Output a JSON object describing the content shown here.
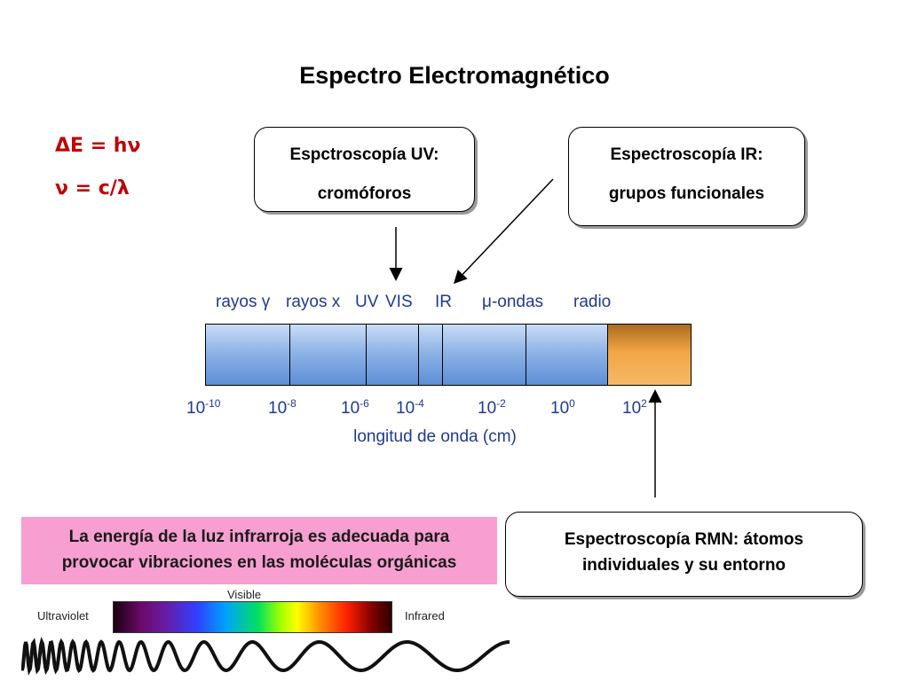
{
  "title": "Espectro Electromagnético",
  "formulas": [
    "ΔE = hν",
    "ν = c/λ"
  ],
  "uv_box": {
    "line1": "Espctroscopía UV:",
    "line2": "cromóforos"
  },
  "ir_box": {
    "line1": "Espectroscopía IR:",
    "line2": "grupos funcionales"
  },
  "rmn_box": {
    "line1": "Espectroscopía RMN: átomos",
    "line2": "individuales y su entorno"
  },
  "regions": [
    "rayos γ",
    "rayos x",
    "UV",
    "VIS",
    "IR",
    "μ-ondas",
    "radio"
  ],
  "ticks": [
    {
      "base": "10",
      "exp": "-10"
    },
    {
      "base": "10",
      "exp": "-8"
    },
    {
      "base": "10",
      "exp": "-6"
    },
    {
      "base": "10",
      "exp": "-4"
    },
    {
      "base": "10",
      "exp": "-2"
    },
    {
      "base": "10",
      "exp": "0"
    },
    {
      "base": "10",
      "exp": "2"
    }
  ],
  "wavelength_label": "longitud de onda (cm)",
  "note": {
    "line1": "La energía de la luz infrarroja es adecuada para",
    "line2": "provocar vibraciones en las moléculas orgánicas"
  },
  "visible_strip": {
    "visible": "Visible",
    "ultraviolet": "Ultraviolet",
    "infrared": "Infrared"
  },
  "colors": {
    "formula": "#c00000",
    "region_text": "#1f3a93",
    "bar_blue": "#8fb4e6",
    "bar_radio": "#f2a544",
    "note_bg": "#f79fd0"
  }
}
